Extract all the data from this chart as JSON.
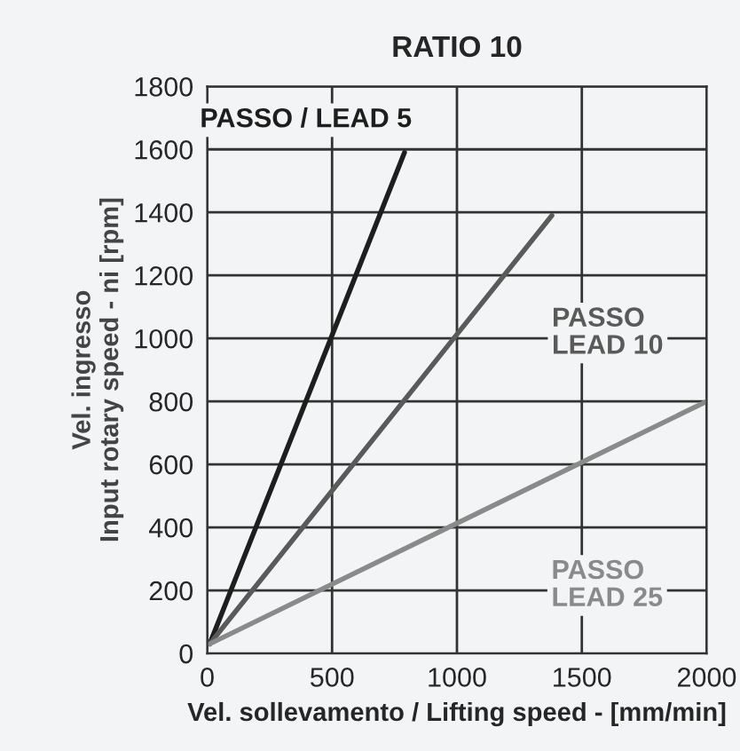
{
  "chart_data": {
    "type": "line",
    "title": "RATIO 10",
    "xlabel": "Vel. sollevamento / Lifting speed - [mm/min]",
    "ylabel": "Vel. ingresso\nInput rotary speed - ni [rpm]",
    "series": [
      {
        "name": "PASSO / LEAD 5",
        "color": "#1e1e1e",
        "x": [
          10,
          790
        ],
        "values": [
          30,
          1590
        ]
      },
      {
        "name": "PASSO\nLEAD 10",
        "color": "#5a5a5a",
        "x": [
          10,
          1380
        ],
        "values": [
          30,
          1390
        ]
      },
      {
        "name": "PASSO\nLEAD 25",
        "color": "#8a8a8a",
        "x": [
          10,
          2000
        ],
        "values": [
          30,
          800
        ]
      }
    ],
    "xlim": [
      0,
      2000
    ],
    "xticks": [
      0,
      500,
      1000,
      1500,
      2000
    ],
    "ylim": [
      0,
      1800
    ],
    "yticks": [
      0,
      200,
      400,
      600,
      800,
      1000,
      1200,
      1400,
      1600,
      1800
    ],
    "grid": true,
    "marker": "none",
    "line_style": "solid"
  }
}
